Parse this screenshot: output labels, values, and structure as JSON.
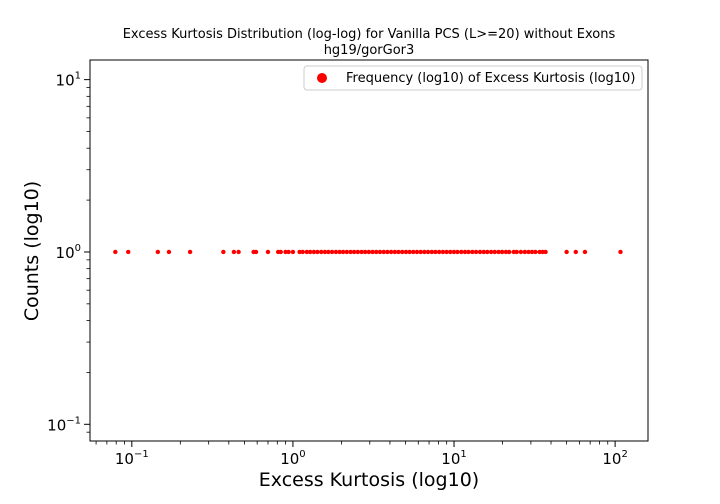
{
  "chart_data": {
    "type": "scatter",
    "title": "Excess Kurtosis Distribution (log-log) for Vanilla PCS (L>=20) without Exons",
    "subtitle": "hg19/gorGor3",
    "xlabel": "Excess Kurtosis (log10)",
    "ylabel": "Counts (log10)",
    "xscale": "log",
    "yscale": "log",
    "xlim": [
      0.055,
      160
    ],
    "ylim": [
      0.08,
      13
    ],
    "x_ticks": [
      {
        "base": "10",
        "exp": "−1",
        "value": 0.1
      },
      {
        "base": "10",
        "exp": "0",
        "value": 1
      },
      {
        "base": "10",
        "exp": "1",
        "value": 10
      },
      {
        "base": "10",
        "exp": "2",
        "value": 100
      }
    ],
    "y_ticks": [
      {
        "base": "10",
        "exp": "−1",
        "value": 0.1
      },
      {
        "base": "10",
        "exp": "0",
        "value": 1
      },
      {
        "base": "10",
        "exp": "1",
        "value": 10
      }
    ],
    "grid": false,
    "legend_position": "top-right",
    "color": "#ff0000",
    "series": [
      {
        "name": "Frequency (log10) of Excess Kurtosis (log10)",
        "x": [
          0.079,
          0.095,
          0.145,
          0.17,
          0.23,
          0.37,
          0.43,
          0.46,
          0.57,
          0.59,
          0.7,
          0.81,
          0.84,
          0.9,
          0.94,
          1.0,
          1.1,
          1.15,
          1.22,
          1.28,
          1.35,
          1.42,
          1.5,
          1.58,
          1.66,
          1.75,
          1.85,
          1.95,
          2.05,
          2.16,
          2.28,
          2.4,
          2.53,
          2.67,
          2.81,
          2.96,
          3.12,
          3.29,
          3.47,
          3.66,
          3.86,
          4.07,
          4.29,
          4.52,
          4.77,
          5.03,
          5.3,
          5.59,
          5.89,
          6.21,
          6.55,
          6.9,
          7.28,
          7.67,
          8.09,
          8.53,
          8.99,
          9.48,
          9.99,
          10.5,
          11.1,
          11.7,
          12.3,
          13.0,
          13.7,
          14.5,
          15.3,
          16.1,
          17.0,
          17.9,
          18.9,
          19.9,
          21.0,
          22.0,
          23.5,
          24.5,
          26.0,
          27.5,
          29.0,
          30.5,
          32.0,
          34.0,
          35.5,
          37.0,
          50,
          57,
          65,
          108
        ],
        "y": [
          1,
          1,
          1,
          1,
          1,
          1,
          1,
          1,
          1,
          1,
          1,
          1,
          1,
          1,
          1,
          1,
          1,
          1,
          1,
          1,
          1,
          1,
          1,
          1,
          1,
          1,
          1,
          1,
          1,
          1,
          1,
          1,
          1,
          1,
          1,
          1,
          1,
          1,
          1,
          1,
          1,
          1,
          1,
          1,
          1,
          1,
          1,
          1,
          1,
          1,
          1,
          1,
          1,
          1,
          1,
          1,
          1,
          1,
          1,
          1,
          1,
          1,
          1,
          1,
          1,
          1,
          1,
          1,
          1,
          1,
          1,
          1,
          1,
          1,
          1,
          1,
          1,
          1,
          1,
          1,
          1,
          1,
          1,
          1,
          1,
          1,
          1,
          1
        ]
      }
    ]
  }
}
